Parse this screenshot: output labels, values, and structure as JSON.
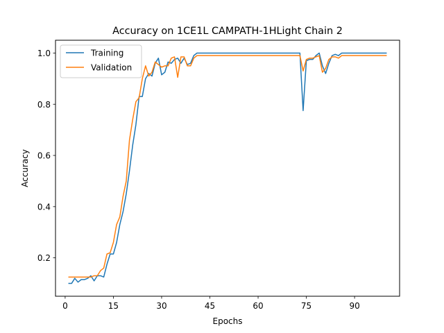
{
  "chart_data": {
    "type": "line",
    "title": "Accuracy on 1CE1L CAMPATH-1HLight Chain 2",
    "xlabel": "Epochs",
    "ylabel": "Accuracy",
    "xlim": [
      -3,
      104
    ],
    "ylim": [
      0.05,
      1.05
    ],
    "xticks": [
      0,
      15,
      30,
      45,
      60,
      75,
      90
    ],
    "yticks": [
      0.2,
      0.4,
      0.6,
      0.8,
      1.0
    ],
    "ytick_labels": [
      "0.2",
      "0.4",
      "0.6",
      "0.8",
      "1.0"
    ],
    "legend": "top-left",
    "x": [
      1,
      2,
      3,
      4,
      5,
      6,
      7,
      8,
      9,
      10,
      11,
      12,
      13,
      14,
      15,
      16,
      17,
      18,
      19,
      20,
      21,
      22,
      23,
      24,
      25,
      26,
      27,
      28,
      29,
      30,
      31,
      32,
      33,
      34,
      35,
      36,
      37,
      38,
      39,
      40,
      41,
      42,
      43,
      44,
      45,
      46,
      47,
      48,
      49,
      50,
      51,
      52,
      53,
      54,
      55,
      56,
      57,
      58,
      59,
      60,
      61,
      62,
      63,
      64,
      65,
      66,
      67,
      68,
      69,
      70,
      71,
      72,
      73,
      74,
      75,
      76,
      77,
      78,
      79,
      80,
      81,
      82,
      83,
      84,
      85,
      86,
      87,
      88,
      89,
      90,
      91,
      92,
      93,
      94,
      95,
      96,
      97,
      98,
      99,
      100
    ],
    "series": [
      {
        "name": "Training",
        "color": "#1f77b4",
        "values": [
          0.1,
          0.1,
          0.12,
          0.105,
          0.115,
          0.115,
          0.12,
          0.13,
          0.11,
          0.13,
          0.13,
          0.125,
          0.175,
          0.215,
          0.215,
          0.26,
          0.33,
          0.38,
          0.45,
          0.54,
          0.64,
          0.72,
          0.83,
          0.83,
          0.9,
          0.92,
          0.91,
          0.96,
          0.98,
          0.915,
          0.925,
          0.965,
          0.96,
          0.975,
          0.98,
          0.96,
          0.98,
          0.955,
          0.96,
          0.99,
          1.0,
          1.0,
          1.0,
          1.0,
          1.0,
          1.0,
          1.0,
          1.0,
          1.0,
          1.0,
          1.0,
          1.0,
          1.0,
          1.0,
          1.0,
          1.0,
          1.0,
          1.0,
          1.0,
          1.0,
          1.0,
          1.0,
          1.0,
          1.0,
          1.0,
          1.0,
          1.0,
          1.0,
          1.0,
          1.0,
          1.0,
          1.0,
          1.0,
          0.775,
          0.97,
          0.975,
          0.975,
          0.99,
          1.0,
          0.95,
          0.92,
          0.96,
          0.99,
          0.995,
          0.99,
          1.0,
          1.0,
          1.0,
          1.0,
          1.0,
          1.0,
          1.0,
          1.0,
          1.0,
          1.0,
          1.0,
          1.0,
          1.0,
          1.0,
          1.0
        ]
      },
      {
        "name": "Validation",
        "color": "#ff7f0e",
        "values": [
          0.125,
          0.125,
          0.125,
          0.125,
          0.125,
          0.125,
          0.125,
          0.125,
          0.13,
          0.13,
          0.15,
          0.16,
          0.215,
          0.22,
          0.26,
          0.33,
          0.36,
          0.44,
          0.5,
          0.66,
          0.74,
          0.81,
          0.825,
          0.9,
          0.95,
          0.91,
          0.925,
          0.965,
          0.955,
          0.945,
          0.95,
          0.95,
          0.98,
          0.985,
          0.905,
          0.985,
          0.985,
          0.95,
          0.95,
          0.98,
          0.99,
          0.99,
          0.99,
          0.99,
          0.99,
          0.99,
          0.99,
          0.99,
          0.99,
          0.99,
          0.99,
          0.99,
          0.99,
          0.99,
          0.99,
          0.99,
          0.99,
          0.99,
          0.99,
          0.99,
          0.99,
          0.99,
          0.99,
          0.99,
          0.99,
          0.99,
          0.99,
          0.99,
          0.99,
          0.99,
          0.99,
          0.99,
          0.99,
          0.93,
          0.975,
          0.98,
          0.98,
          0.985,
          0.99,
          0.925,
          0.94,
          0.975,
          0.985,
          0.985,
          0.98,
          0.99,
          0.99,
          0.99,
          0.99,
          0.99,
          0.99,
          0.99,
          0.99,
          0.99,
          0.99,
          0.99,
          0.99,
          0.99,
          0.99,
          0.99
        ]
      }
    ]
  }
}
